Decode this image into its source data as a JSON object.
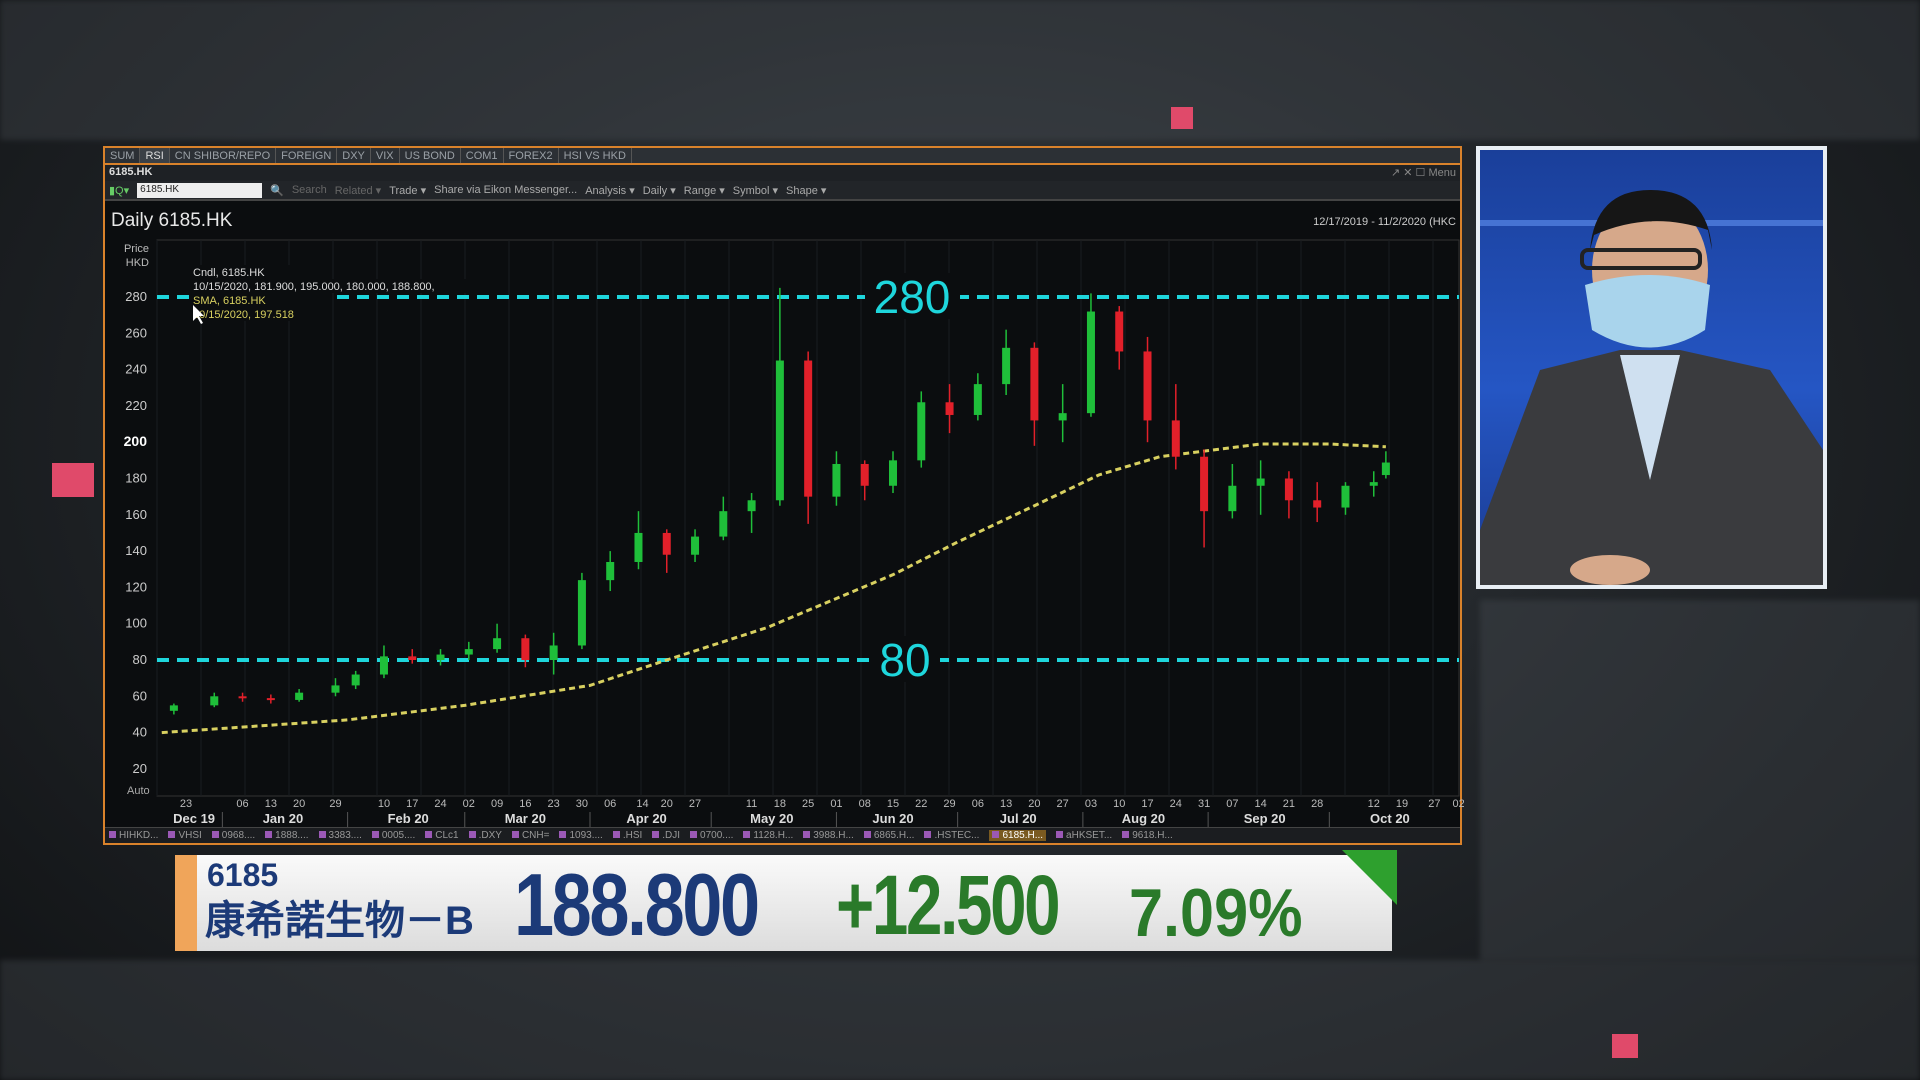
{
  "window": {
    "tabs": [
      "SUM",
      "RSI",
      "CN SHIBOR/REPO",
      "FOREIGN",
      "DXY",
      "VIX",
      "US BOND",
      "COM1",
      "FOREX2",
      "HSI VS HKD"
    ],
    "active_tab": 1,
    "title": "6185.HK",
    "title_right": "↗ ✕ ☐ Menu",
    "toolbar": {
      "symbol_value": "6185.HK",
      "items": [
        "Search",
        "Related ▾",
        "Trade ▾",
        "Share via Eikon Messenger...",
        "Analysis ▾",
        "Daily ▾",
        "Range ▾",
        "Symbol ▾",
        "Shape ▾"
      ]
    },
    "chart_title": "Daily 6185.HK",
    "date_range": "12/17/2019 - 11/2/2020 (HKC",
    "bottom_tabs": [
      "HIHKD...",
      "VHSI",
      "0968....",
      "1888....",
      "3383....",
      "0005....",
      "CLc1",
      ".DXY",
      "CNH=",
      "1093....",
      ".HSI",
      ".DJI",
      "0700....",
      "1128.H...",
      "3988.H...",
      "6865.H...",
      ".HSTEC...",
      "6185.H...",
      "aHKSET...",
      "9618.H..."
    ],
    "active_bottom_tab": 17
  },
  "chart_data": {
    "type": "candlestick",
    "title": "Daily 6185.HK",
    "ylabel": "Price HKD",
    "ylim": [
      10,
      295
    ],
    "yticks": [
      20,
      40,
      60,
      80,
      100,
      120,
      140,
      160,
      180,
      200,
      220,
      240,
      260,
      280
    ],
    "y_highlight": "200",
    "auto_label": "Auto",
    "legend": [
      "Cndl, 6185.HK",
      "10/15/2020, 181.900, 195.000, 180.000, 188.800,",
      "SMA, 6185.HK",
      "10/15/2020, 197.518"
    ],
    "hlines": [
      {
        "value": 280,
        "label": "280"
      },
      {
        "value": 80,
        "label": "80"
      }
    ],
    "x_day_ticks": [
      "23",
      "06",
      "13",
      "20",
      "29",
      "10",
      "17",
      "24",
      "02",
      "09",
      "16",
      "23",
      "30",
      "06",
      "14",
      "20",
      "27",
      "11",
      "18",
      "25",
      "01",
      "08",
      "15",
      "22",
      "29",
      "06",
      "13",
      "20",
      "27",
      "03",
      "10",
      "17",
      "24",
      "31",
      "07",
      "14",
      "21",
      "28",
      "12",
      "19",
      "27",
      "02"
    ],
    "x_month_ticks": [
      "Dec 19",
      "Jan 20",
      "Feb 20",
      "Mar 20",
      "Apr 20",
      "May 20",
      "Jun 20",
      "Jul 20",
      "Aug 20",
      "Sep 20",
      "Oct 20"
    ],
    "candles": [
      [
        "2019-12-20",
        52,
        56,
        50,
        55
      ],
      [
        "2019-12-30",
        55,
        62,
        54,
        60
      ],
      [
        "2020-01-06",
        60,
        62,
        57,
        59
      ],
      [
        "2020-01-13",
        59,
        61,
        56,
        58
      ],
      [
        "2020-01-20",
        58,
        64,
        57,
        62
      ],
      [
        "2020-01-29",
        62,
        70,
        60,
        66
      ],
      [
        "2020-02-03",
        66,
        74,
        64,
        72
      ],
      [
        "2020-02-10",
        72,
        88,
        70,
        82
      ],
      [
        "2020-02-17",
        82,
        86,
        78,
        80
      ],
      [
        "2020-02-24",
        80,
        86,
        77,
        83
      ],
      [
        "2020-03-02",
        83,
        90,
        80,
        86
      ],
      [
        "2020-03-09",
        86,
        100,
        84,
        92
      ],
      [
        "2020-03-16",
        92,
        94,
        76,
        80
      ],
      [
        "2020-03-23",
        80,
        95,
        72,
        88
      ],
      [
        "2020-03-30",
        88,
        128,
        86,
        124
      ],
      [
        "2020-04-06",
        124,
        140,
        118,
        134
      ],
      [
        "2020-04-13",
        134,
        162,
        130,
        150
      ],
      [
        "2020-04-20",
        150,
        152,
        128,
        138
      ],
      [
        "2020-04-27",
        138,
        152,
        134,
        148
      ],
      [
        "2020-05-04",
        148,
        170,
        146,
        162
      ],
      [
        "2020-05-11",
        162,
        172,
        150,
        168
      ],
      [
        "2020-05-18",
        168,
        285,
        165,
        245
      ],
      [
        "2020-05-25",
        245,
        250,
        155,
        170
      ],
      [
        "2020-06-01",
        170,
        195,
        165,
        188
      ],
      [
        "2020-06-08",
        188,
        190,
        168,
        176
      ],
      [
        "2020-06-15",
        176,
        195,
        172,
        190
      ],
      [
        "2020-06-22",
        190,
        228,
        186,
        222
      ],
      [
        "2020-06-29",
        222,
        232,
        205,
        215
      ],
      [
        "2020-07-06",
        215,
        238,
        212,
        232
      ],
      [
        "2020-07-13",
        232,
        262,
        226,
        252
      ],
      [
        "2020-07-20",
        252,
        255,
        198,
        212
      ],
      [
        "2020-07-27",
        212,
        232,
        200,
        216
      ],
      [
        "2020-08-03",
        216,
        282,
        214,
        272
      ],
      [
        "2020-08-10",
        272,
        275,
        240,
        250
      ],
      [
        "2020-08-17",
        250,
        258,
        200,
        212
      ],
      [
        "2020-08-24",
        212,
        232,
        185,
        192
      ],
      [
        "2020-08-31",
        192,
        196,
        142,
        162
      ],
      [
        "2020-09-07",
        162,
        188,
        158,
        176
      ],
      [
        "2020-09-14",
        176,
        190,
        160,
        180
      ],
      [
        "2020-09-21",
        180,
        184,
        158,
        168
      ],
      [
        "2020-09-28",
        168,
        178,
        156,
        164
      ],
      [
        "2020-10-05",
        164,
        178,
        160,
        176
      ],
      [
        "2020-10-12",
        176,
        184,
        170,
        178
      ],
      [
        "2020-10-15",
        181.9,
        195,
        180,
        188.8
      ]
    ],
    "sma": [
      [
        "2019-12-17",
        40
      ],
      [
        "2020-02-01",
        47
      ],
      [
        "2020-03-01",
        55
      ],
      [
        "2020-04-01",
        66
      ],
      [
        "2020-04-20",
        80
      ],
      [
        "2020-05-15",
        98
      ],
      [
        "2020-06-15",
        127
      ],
      [
        "2020-07-01",
        145
      ],
      [
        "2020-07-20",
        165
      ],
      [
        "2020-08-05",
        182
      ],
      [
        "2020-08-20",
        192
      ],
      [
        "2020-09-14",
        199
      ],
      [
        "2020-10-01",
        199
      ],
      [
        "2020-10-15",
        197.5
      ]
    ],
    "colors": {
      "up": "#1fbf3a",
      "down": "#e2202a",
      "sma": "#d8d060",
      "hline": "#1ed6dc"
    }
  },
  "ticker": {
    "code": "6185",
    "name": "康希諾生物－B",
    "price": "188.800",
    "change": "+12.500",
    "pct": "7.09%",
    "colors": {
      "price": "#1c3a78",
      "change": "#2a7a2a"
    }
  }
}
